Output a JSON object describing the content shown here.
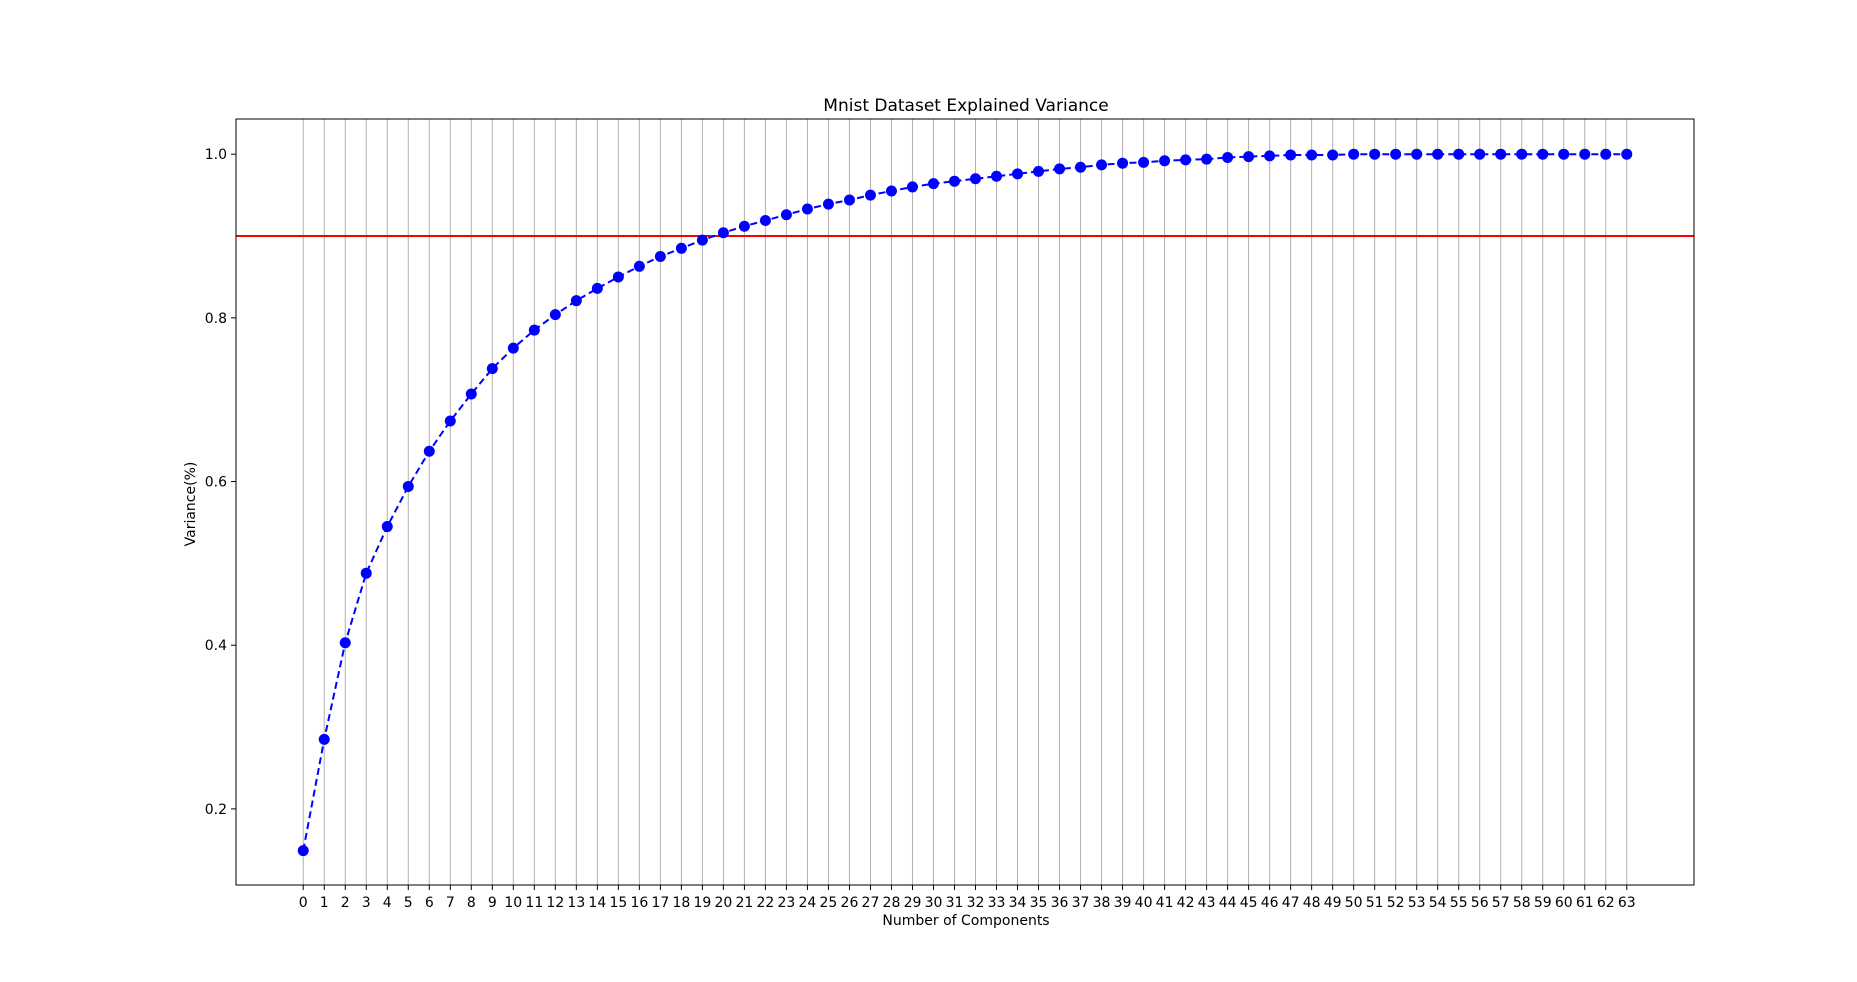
{
  "chart_data": {
    "type": "line",
    "title": "Mnist Dataset Explained Variance",
    "xlabel": "Number of Components",
    "ylabel": "Variance(%)",
    "x": [
      0,
      1,
      2,
      3,
      4,
      5,
      6,
      7,
      8,
      9,
      10,
      11,
      12,
      13,
      14,
      15,
      16,
      17,
      18,
      19,
      20,
      21,
      22,
      23,
      24,
      25,
      26,
      27,
      28,
      29,
      30,
      31,
      32,
      33,
      34,
      35,
      36,
      37,
      38,
      39,
      40,
      41,
      42,
      43,
      44,
      45,
      46,
      47,
      48,
      49,
      50,
      51,
      52,
      53,
      54,
      55,
      56,
      57,
      58,
      59,
      60,
      61,
      62,
      63
    ],
    "x_tick_labels": [
      "0",
      "1",
      "2",
      "3",
      "4",
      "5",
      "6",
      "7",
      "8",
      "9",
      "10",
      "11",
      "12",
      "13",
      "14",
      "15",
      "16",
      "17",
      "18",
      "19",
      "20",
      "21",
      "22",
      "23",
      "24",
      "25",
      "26",
      "27",
      "28",
      "29",
      "30",
      "31",
      "32",
      "33",
      "34",
      "35",
      "36",
      "37",
      "38",
      "39",
      "40",
      "41",
      "42",
      "43",
      "44",
      "45",
      "46",
      "47",
      "48",
      "49",
      "50",
      "51",
      "52",
      "53",
      "54",
      "55",
      "56",
      "57",
      "58",
      "59",
      "60",
      "61",
      "62",
      "63"
    ],
    "series": [
      {
        "values": [
          0.149,
          0.285,
          0.403,
          0.488,
          0.545,
          0.594,
          0.637,
          0.674,
          0.707,
          0.738,
          0.763,
          0.785,
          0.804,
          0.821,
          0.836,
          0.85,
          0.863,
          0.875,
          0.885,
          0.895,
          0.904,
          0.912,
          0.919,
          0.926,
          0.933,
          0.939,
          0.944,
          0.95,
          0.955,
          0.96,
          0.964,
          0.967,
          0.97,
          0.973,
          0.976,
          0.979,
          0.982,
          0.984,
          0.987,
          0.989,
          0.99,
          0.992,
          0.993,
          0.994,
          0.996,
          0.997,
          0.998,
          0.999,
          0.999,
          0.999,
          1.0,
          1.0,
          1.0,
          1.0,
          1.0,
          1.0,
          1.0,
          1.0,
          1.0,
          1.0,
          1.0,
          1.0,
          1.0,
          1.0
        ],
        "color": "#0000ff",
        "line_style": "dashed",
        "marker": "circle"
      }
    ],
    "reference_line": {
      "y": 0.9,
      "color": "#ff0000",
      "orientation": "horizontal"
    },
    "y_ticks": [
      0.2,
      0.4,
      0.6,
      0.8,
      1.0
    ],
    "y_tick_labels": [
      "0.2",
      "0.4",
      "0.6",
      "0.8",
      "1.0"
    ],
    "xlim": [
      -3.2,
      66.2
    ],
    "ylim": [
      0.107,
      1.043
    ],
    "grid": {
      "x": true,
      "y": false,
      "color": "#b0b0b0"
    }
  }
}
